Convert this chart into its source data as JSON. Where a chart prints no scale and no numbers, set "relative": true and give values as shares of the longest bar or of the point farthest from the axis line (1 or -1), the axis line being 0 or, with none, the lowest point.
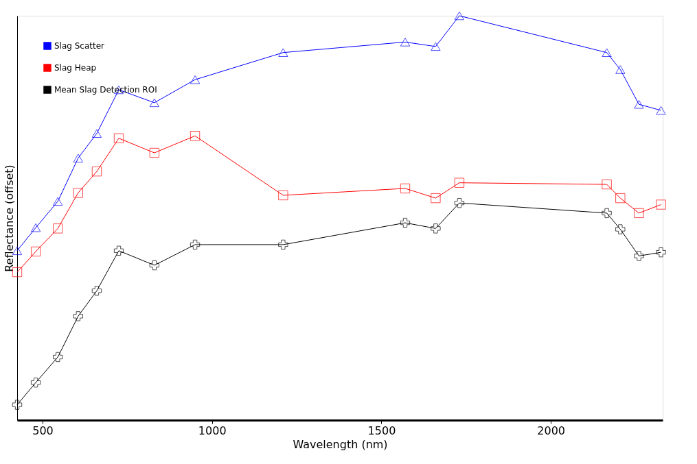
{
  "chart_data": {
    "type": "line",
    "xlabel": "Wavelength (nm)",
    "ylabel": "Reflectance (offset)",
    "relative": true,
    "tick_labels": "x",
    "grid": false,
    "legend": "top left",
    "line_style": "solid",
    "x": [
      425,
      480,
      545,
      605,
      660,
      725,
      830,
      950,
      1210,
      1570,
      1660,
      1730,
      2165,
      2205,
      2260,
      2325
    ],
    "xlim": [
      425,
      2330
    ],
    "xticks": [
      500,
      1000,
      1500,
      2000
    ],
    "series": [
      {
        "name": "Slag Scatter",
        "color": "#0000ff",
        "marker": "triangle",
        "values": [
          0.419,
          0.476,
          0.541,
          0.648,
          0.709,
          0.817,
          0.785,
          0.842,
          0.909,
          0.935,
          0.924,
          1,
          0.909,
          0.867,
          0.781,
          0.766
        ]
      },
      {
        "name": "Slag Heap",
        "color": "#ff0000",
        "marker": "square",
        "values": [
          0.366,
          0.417,
          0.474,
          0.562,
          0.615,
          0.697,
          0.661,
          0.703,
          0.556,
          0.573,
          0.549,
          0.587,
          0.583,
          0.549,
          0.512,
          0.533
        ]
      },
      {
        "name": "Mean Slag Detection ROI",
        "color": "#000000",
        "marker": "cross",
        "values": [
          0.038,
          0.093,
          0.156,
          0.257,
          0.32,
          0.419,
          0.383,
          0.434,
          0.434,
          0.488,
          0.474,
          0.537,
          0.512,
          0.472,
          0.406,
          0.415
        ]
      }
    ]
  }
}
